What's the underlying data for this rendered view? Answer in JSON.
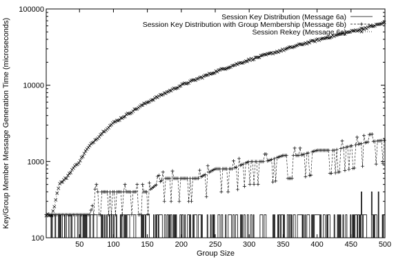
{
  "chart_data": {
    "type": "line",
    "title": "",
    "xlabel": "Group Size",
    "ylabel": "Key/Group Member Message Generation Time (microseconds)",
    "xlim": [
      1,
      500
    ],
    "ylim": [
      100,
      100000
    ],
    "yscale": "log",
    "grid": false,
    "legend_position": "top-right",
    "x_ticks": [
      50,
      100,
      150,
      200,
      250,
      300,
      350,
      400,
      450,
      500
    ],
    "x_tick_labels": [
      "50",
      "100",
      "150",
      "200",
      "250",
      "300",
      "350",
      "400",
      "450",
      "500"
    ],
    "y_ticks": [
      100,
      1000,
      10000,
      100000
    ],
    "y_tick_labels": [
      "100",
      "1000",
      "10000",
      "100000"
    ],
    "series": [
      {
        "name": "Session Key Distribution (Message 6a)",
        "style": "solid",
        "marker": "none",
        "description_points": {
          "baseline": 100,
          "spike_level": 200,
          "rare_peak": 400,
          "peak_x": [
            465,
            480,
            490
          ]
        }
      },
      {
        "name": "Session Key Distribution with Group Membership (Message 6b)",
        "style": "dashed",
        "marker": "plus",
        "x": [
          5,
          15,
          25,
          35,
          45,
          55,
          65,
          75,
          85,
          100,
          125,
          150,
          175,
          200,
          225,
          250,
          275,
          300,
          325,
          350,
          375,
          400,
          425,
          450,
          475,
          500
        ],
        "y": [
          200,
          200,
          200,
          200,
          200,
          200,
          200,
          400,
          400,
          400,
          400,
          400,
          600,
          600,
          600,
          800,
          800,
          1000,
          1000,
          1200,
          1200,
          1400,
          1400,
          1600,
          1800,
          1900
        ]
      },
      {
        "name": "Session Rekey (Message 6c)",
        "style": "dotted",
        "marker": "cross",
        "x": [
          5,
          10,
          20,
          30,
          40,
          50,
          60,
          70,
          80,
          90,
          100,
          125,
          150,
          175,
          200,
          225,
          250,
          275,
          300,
          325,
          350,
          375,
          400,
          425,
          450,
          475,
          500
        ],
        "y": [
          200,
          200,
          500,
          600,
          800,
          1000,
          1400,
          1800,
          2200,
          2700,
          3200,
          4400,
          6000,
          7800,
          10000,
          12200,
          15000,
          18000,
          21500,
          25000,
          29000,
          34000,
          39000,
          44500,
          50500,
          57500,
          66000
        ]
      }
    ]
  }
}
